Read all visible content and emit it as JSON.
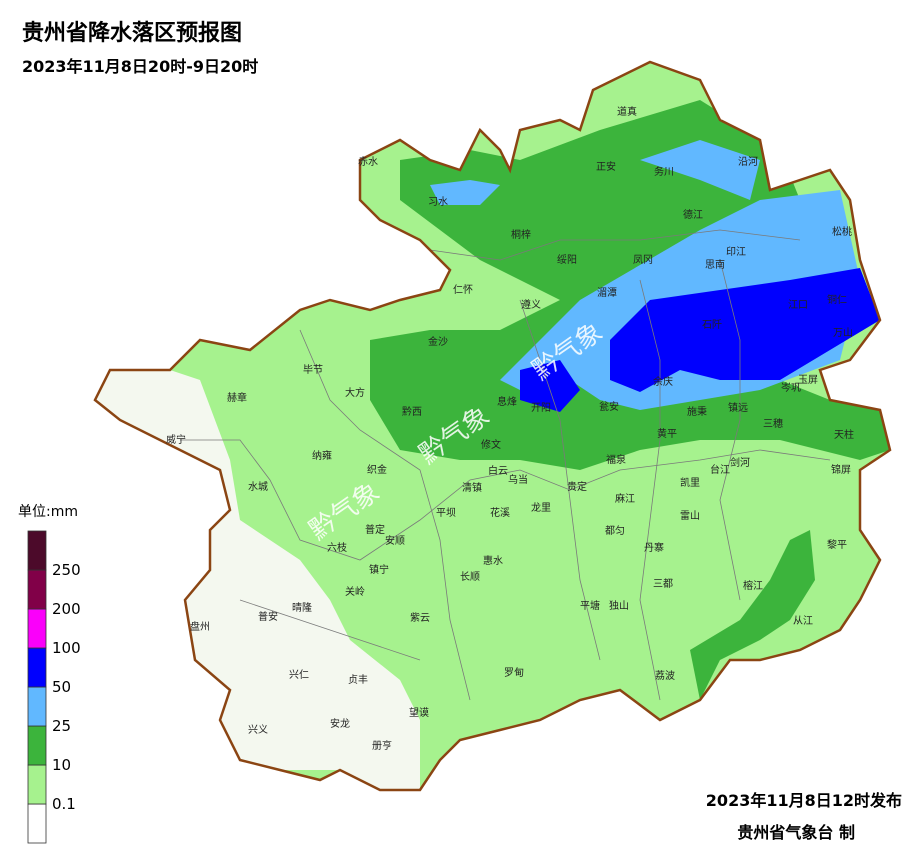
{
  "header": {
    "title": "贵州省降水落区预报图",
    "subtitle": "2023年11月8日20时-9日20时"
  },
  "legend": {
    "unit": "单位:mm",
    "levels": [
      0.1,
      10,
      25,
      50,
      100,
      200,
      250
    ],
    "colors": [
      "#ffffff",
      "#a6f28e",
      "#3cb43c",
      "#61b8ff",
      "#0000fe",
      "#fa00fa",
      "#810048",
      "#4c0a2a"
    ]
  },
  "counties": [
    "道真",
    "赤水",
    "正安",
    "务川",
    "沿河",
    "习水",
    "桐梓",
    "德江",
    "松桃",
    "绥阳",
    "凤冈",
    "印江",
    "思南",
    "仁怀",
    "湄潭",
    "遵义",
    "江口",
    "铜仁",
    "石阡",
    "万山",
    "金沙",
    "毕节",
    "大方",
    "余庆",
    "岑巩",
    "玉屏",
    "赫章",
    "息烽",
    "开阳",
    "瓮安",
    "施秉",
    "镇远",
    "黔西",
    "三穗",
    "修文",
    "黄平",
    "天柱",
    "威宁",
    "纳雍",
    "织金",
    "福泉",
    "凯里",
    "台江",
    "剑河",
    "锦屏",
    "白云",
    "乌当",
    "清镇",
    "贵定",
    "麻江",
    "水城",
    "平坝",
    "花溪",
    "龙里",
    "雷山",
    "都匀",
    "黎平",
    "普定",
    "安顺",
    "六枝",
    "惠水",
    "丹寨",
    "镇宁",
    "长顺",
    "三都",
    "榕江",
    "关岭",
    "盘州",
    "普安",
    "晴隆",
    "紫云",
    "平塘",
    "独山",
    "从江",
    "兴仁",
    "贞丰",
    "罗甸",
    "荔波",
    "兴义",
    "安龙",
    "望谟",
    "册亨"
  ],
  "watermarks": [
    "黔气象",
    "黔气象",
    "黔气象"
  ],
  "footer": {
    "issued": "2023年11月8日12时发布",
    "issuer": "贵州省气象台 制"
  }
}
